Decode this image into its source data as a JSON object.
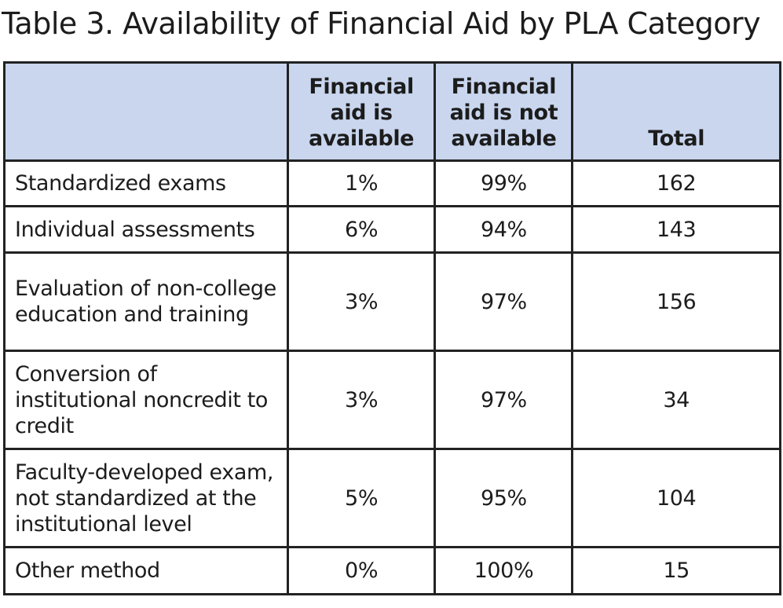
{
  "chart_data": {
    "type": "table",
    "title": "Table 3. Availability of Financial Aid by PLA Category",
    "columns": [
      "",
      "Financial aid is available",
      "Financial aid is not available",
      "Total"
    ],
    "rows": [
      {
        "category": "Standardized exams",
        "available": "1%",
        "not_available": "99%",
        "total": "162"
      },
      {
        "category": "Individual assessments",
        "available": "6%",
        "not_available": "94%",
        "total": "143"
      },
      {
        "category": "Evaluation of non-college education and training",
        "available": "3%",
        "not_available": "97%",
        "total": "156"
      },
      {
        "category": "Conversion of institutional noncredit to credit",
        "available": "3%",
        "not_available": "97%",
        "total": "34"
      },
      {
        "category": "Faculty-developed exam, not standardized at the institutional level",
        "available": "5%",
        "not_available": "95%",
        "total": "104"
      },
      {
        "category": "Other method",
        "available": "0%",
        "not_available": "100%",
        "total": "15"
      }
    ],
    "header_color": "#c9d6ee"
  }
}
